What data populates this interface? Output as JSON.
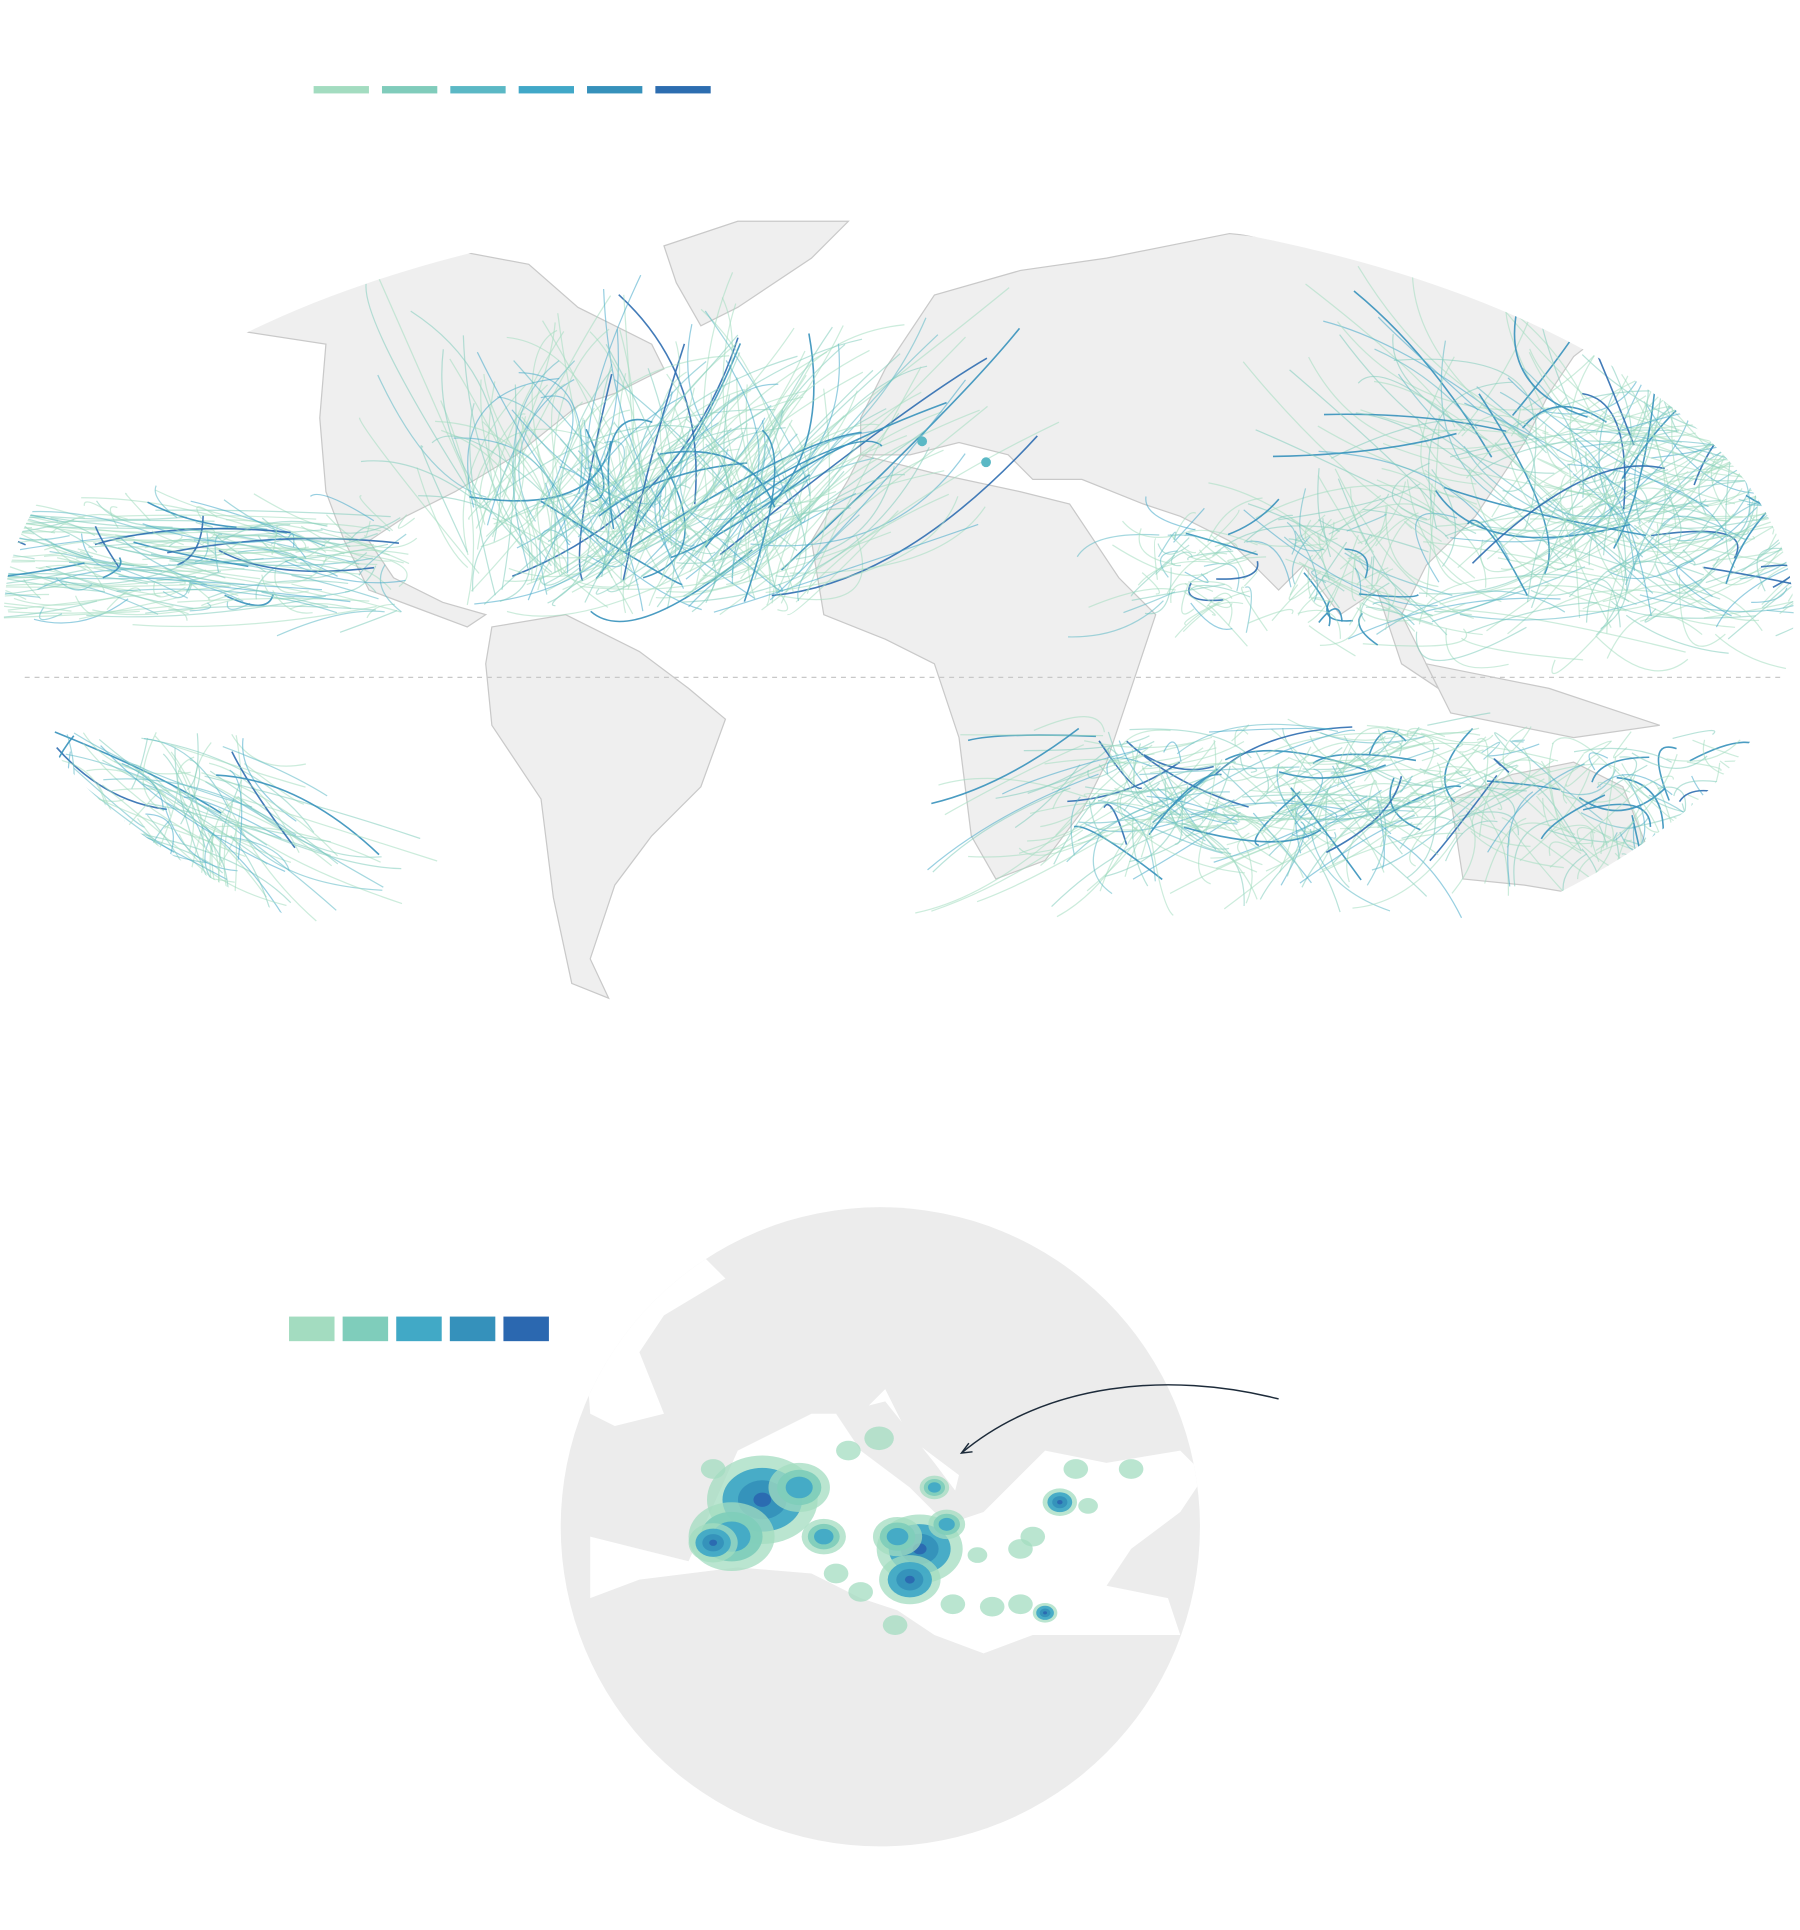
{
  "legend_top": {
    "colors": [
      "#a3dcc0",
      "#80ccbb",
      "#5bb8c5",
      "#41a8c8",
      "#3691bb",
      "#2d6db0"
    ]
  },
  "legend_bottom": {
    "colors": [
      "#a3dcc0",
      "#7fcdbb",
      "#41a9c6",
      "#3591bb",
      "#2b68b0"
    ]
  }
}
